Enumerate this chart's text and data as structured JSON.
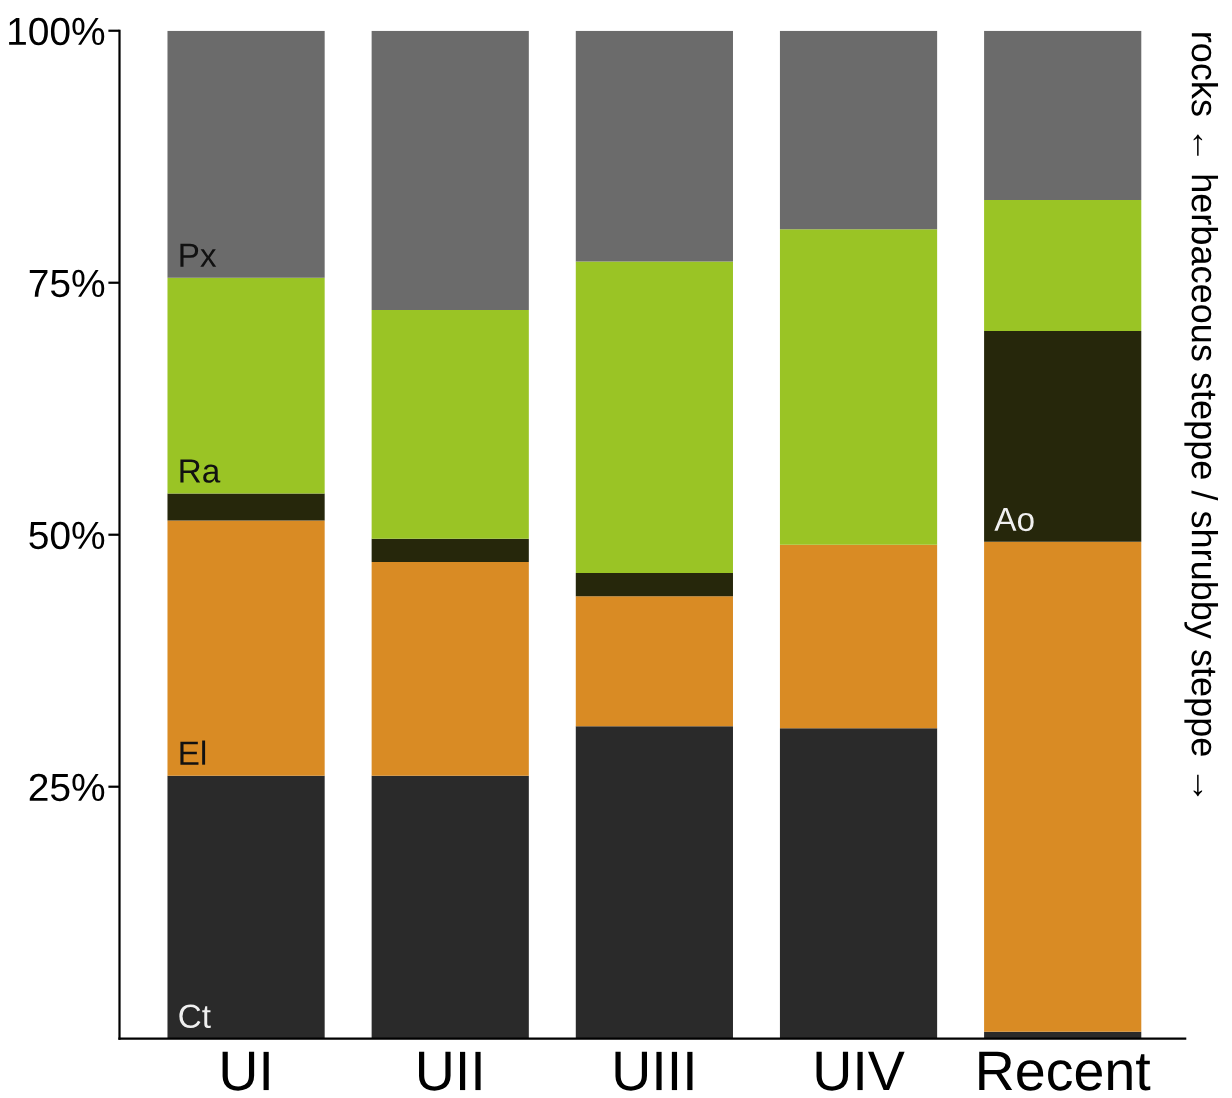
{
  "chart_data": {
    "type": "bar",
    "stacked": true,
    "categories": [
      "UI",
      "UII",
      "UIII",
      "UIV",
      "Recent"
    ],
    "series": [
      {
        "name": "Ct",
        "color": "#2a2a2a",
        "values": [
          26.1,
          26.1,
          31.0,
          30.8,
          0.7
        ]
      },
      {
        "name": "El",
        "color": "#d98b24",
        "values": [
          25.3,
          21.2,
          12.9,
          18.2,
          48.6
        ]
      },
      {
        "name": "Ao",
        "color": "#26270b",
        "values": [
          2.7,
          2.3,
          2.3,
          0,
          20.9
        ]
      },
      {
        "name": "Ra",
        "color": "#9ac425",
        "values": [
          21.4,
          22.7,
          30.9,
          31.3,
          13.0
        ]
      },
      {
        "name": "Px",
        "color": "#6b6b6b",
        "values": [
          24.5,
          27.7,
          22.9,
          19.7,
          16.8
        ]
      }
    ],
    "ylim": [
      0,
      100
    ],
    "yticks": [
      {
        "value": 25,
        "label": "25%"
      },
      {
        "value": 50,
        "label": "50%"
      },
      {
        "value": 75,
        "label": "75%"
      },
      {
        "value": 100,
        "label": "100%"
      }
    ],
    "grid": false,
    "legend": false,
    "annotations": [
      "rocks ← herbaceous steppe / shrubby steppe →"
    ]
  }
}
